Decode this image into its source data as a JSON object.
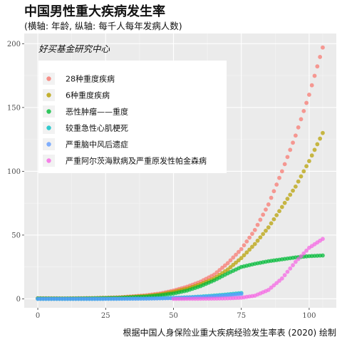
{
  "page": {
    "title": "中国男性重大疾病发生率",
    "subtitle": "(横轴: 年龄, 纵轴: 每千人每年发病人数)",
    "caption": "根据中国人身保险业重大疾病经验发生率表 (2020) 绘制",
    "watermark": "好买基金研究中心"
  },
  "chart_data": {
    "type": "scatter",
    "title": "中国男性重大疾病发生率",
    "subtitle": "(横轴: 年龄, 纵轴: 每千人每年发病人数)",
    "xlabel": "",
    "ylabel": "",
    "xlim": [
      -5,
      110
    ],
    "ylim": [
      -7,
      208
    ],
    "x_ticks": [
      0,
      25,
      50,
      75,
      100
    ],
    "y_ticks": [
      0,
      50,
      100,
      150,
      200
    ],
    "x_tick_labels": [
      "0",
      "25",
      "50",
      "75",
      "100"
    ],
    "y_tick_labels": [
      "0",
      "50",
      "100",
      "150",
      "200"
    ],
    "grid": true,
    "legend_position": "top-left",
    "series": [
      {
        "name": "28种重度疾病",
        "color": "#F8766D",
        "x": [
          0,
          10,
          20,
          30,
          40,
          45,
          50,
          55,
          60,
          65,
          70,
          75,
          80,
          85,
          90,
          95,
          100,
          105
        ],
        "values": [
          0.5,
          0.4,
          0.6,
          1.2,
          2.8,
          4.2,
          6.5,
          9.5,
          13.5,
          19,
          28,
          39,
          54,
          74,
          100,
          128,
          160,
          197
        ]
      },
      {
        "name": "6种重度疾病",
        "color": "#B79F00",
        "x": [
          0,
          10,
          20,
          30,
          40,
          45,
          50,
          55,
          60,
          65,
          70,
          75,
          80,
          85,
          90,
          95,
          100,
          105
        ],
        "values": [
          0.4,
          0.3,
          0.5,
          1.0,
          2.3,
          3.5,
          5.5,
          8,
          11.5,
          16,
          23,
          32,
          43,
          56,
          72,
          88,
          108,
          130
        ]
      },
      {
        "name": "恶性肿瘤——重度",
        "color": "#00BA38",
        "x": [
          0,
          10,
          20,
          30,
          40,
          45,
          50,
          55,
          60,
          65,
          70,
          75,
          80,
          85,
          90,
          95,
          100,
          105
        ],
        "values": [
          0.3,
          0.2,
          0.4,
          0.8,
          1.8,
          2.8,
          4.2,
          6.5,
          10,
          14.5,
          20,
          25,
          27.5,
          29.5,
          31,
          32.5,
          33.5,
          34
        ]
      },
      {
        "name": "较重急性心肌梗死",
        "color": "#00BFC4",
        "x": [
          0,
          10,
          20,
          30,
          40,
          45,
          50,
          55,
          60,
          65,
          70,
          75
        ],
        "values": [
          0.0,
          0.0,
          0.0,
          0.1,
          0.3,
          0.5,
          0.8,
          1.2,
          1.8,
          2.6,
          3.5,
          4.6
        ]
      },
      {
        "name": "严重脑中风后遗症",
        "color": "#619CFF",
        "x": [
          0,
          10,
          20,
          30,
          40,
          45,
          50,
          55,
          60,
          65,
          70,
          75
        ],
        "values": [
          0.0,
          0.0,
          0.0,
          0.1,
          0.2,
          0.4,
          0.6,
          0.9,
          1.4,
          2.0,
          2.8,
          3.8
        ]
      },
      {
        "name": "严重阿尔茨海默病及严重原发性帕金森病",
        "color": "#F564E3",
        "x": [
          50,
          55,
          60,
          65,
          70,
          75,
          80,
          85,
          90,
          95,
          100,
          105
        ],
        "values": [
          0.0,
          0.05,
          0.1,
          0.2,
          0.4,
          0.9,
          2.5,
          7,
          16,
          29,
          40,
          47
        ]
      }
    ]
  }
}
